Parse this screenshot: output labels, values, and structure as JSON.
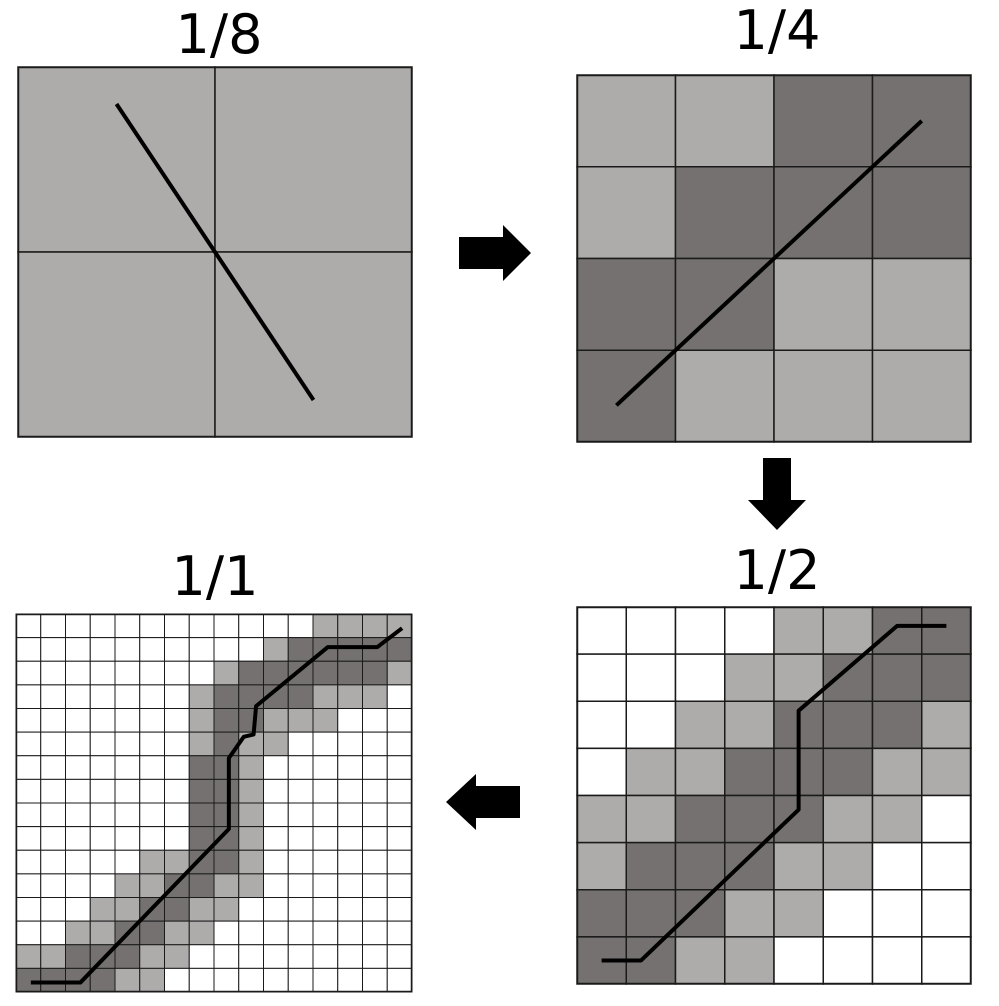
{
  "colors": {
    "white": "#ffffff",
    "light_gray": "#aeabab",
    "dark_gray": "#757171",
    "line": "#000000",
    "grid": "#1a1a1a"
  },
  "panels": [
    {
      "id": "tl",
      "label": "1/8",
      "rows": 2,
      "cols": 2,
      "cells": [
        "11",
        "11"
      ],
      "path": [
        [
          0.5,
          0.2
        ],
        [
          1.5,
          1.8
        ]
      ]
    },
    {
      "id": "tr",
      "label": "1/4",
      "rows": 4,
      "cols": 4,
      "cells": [
        "1122",
        "1222",
        "2211",
        "2111"
      ],
      "path": [
        [
          0.4,
          3.6
        ],
        [
          3.5,
          0.5
        ]
      ]
    },
    {
      "id": "br",
      "label": "1/2",
      "rows": 8,
      "cols": 8,
      "cells": [
        "00001122",
        "00011222",
        "00112221",
        "01122211",
        "11222110",
        "12221100",
        "22211000",
        "22110000"
      ],
      "path": [
        [
          0.5,
          7.5
        ],
        [
          1.3,
          7.5
        ],
        [
          4.5,
          4.3
        ],
        [
          4.5,
          2.2
        ],
        [
          6.5,
          0.4
        ],
        [
          7.5,
          0.4
        ]
      ]
    },
    {
      "id": "bl",
      "label": "1/1",
      "rows": 16,
      "cols": 16,
      "cells": [
        "0000000000001111",
        "0000000000122222",
        "0000000012222221",
        "0000000122221110",
        "0000000122111000",
        "0000000121100000",
        "0000000221000000",
        "0000000221000000",
        "0000000221000000",
        "0000000221000000",
        "0000011221000000",
        "0000112211000000",
        "0001122110000000",
        "0011221100000000",
        "1122211000000000",
        "2222110000000000"
      ],
      "path": [
        [
          0.6,
          15.6
        ],
        [
          2.6,
          15.6
        ],
        [
          8.6,
          9.1
        ],
        [
          8.6,
          6.1
        ],
        [
          9.2,
          5.2
        ],
        [
          9.6,
          5.1
        ],
        [
          9.7,
          3.9
        ],
        [
          12.6,
          1.4
        ],
        [
          14.6,
          1.4
        ],
        [
          15.6,
          0.6
        ]
      ]
    }
  ],
  "arrows": [
    {
      "name": "arrow-right",
      "direction": "right"
    },
    {
      "name": "arrow-down",
      "direction": "down"
    },
    {
      "name": "arrow-left",
      "direction": "left"
    }
  ]
}
